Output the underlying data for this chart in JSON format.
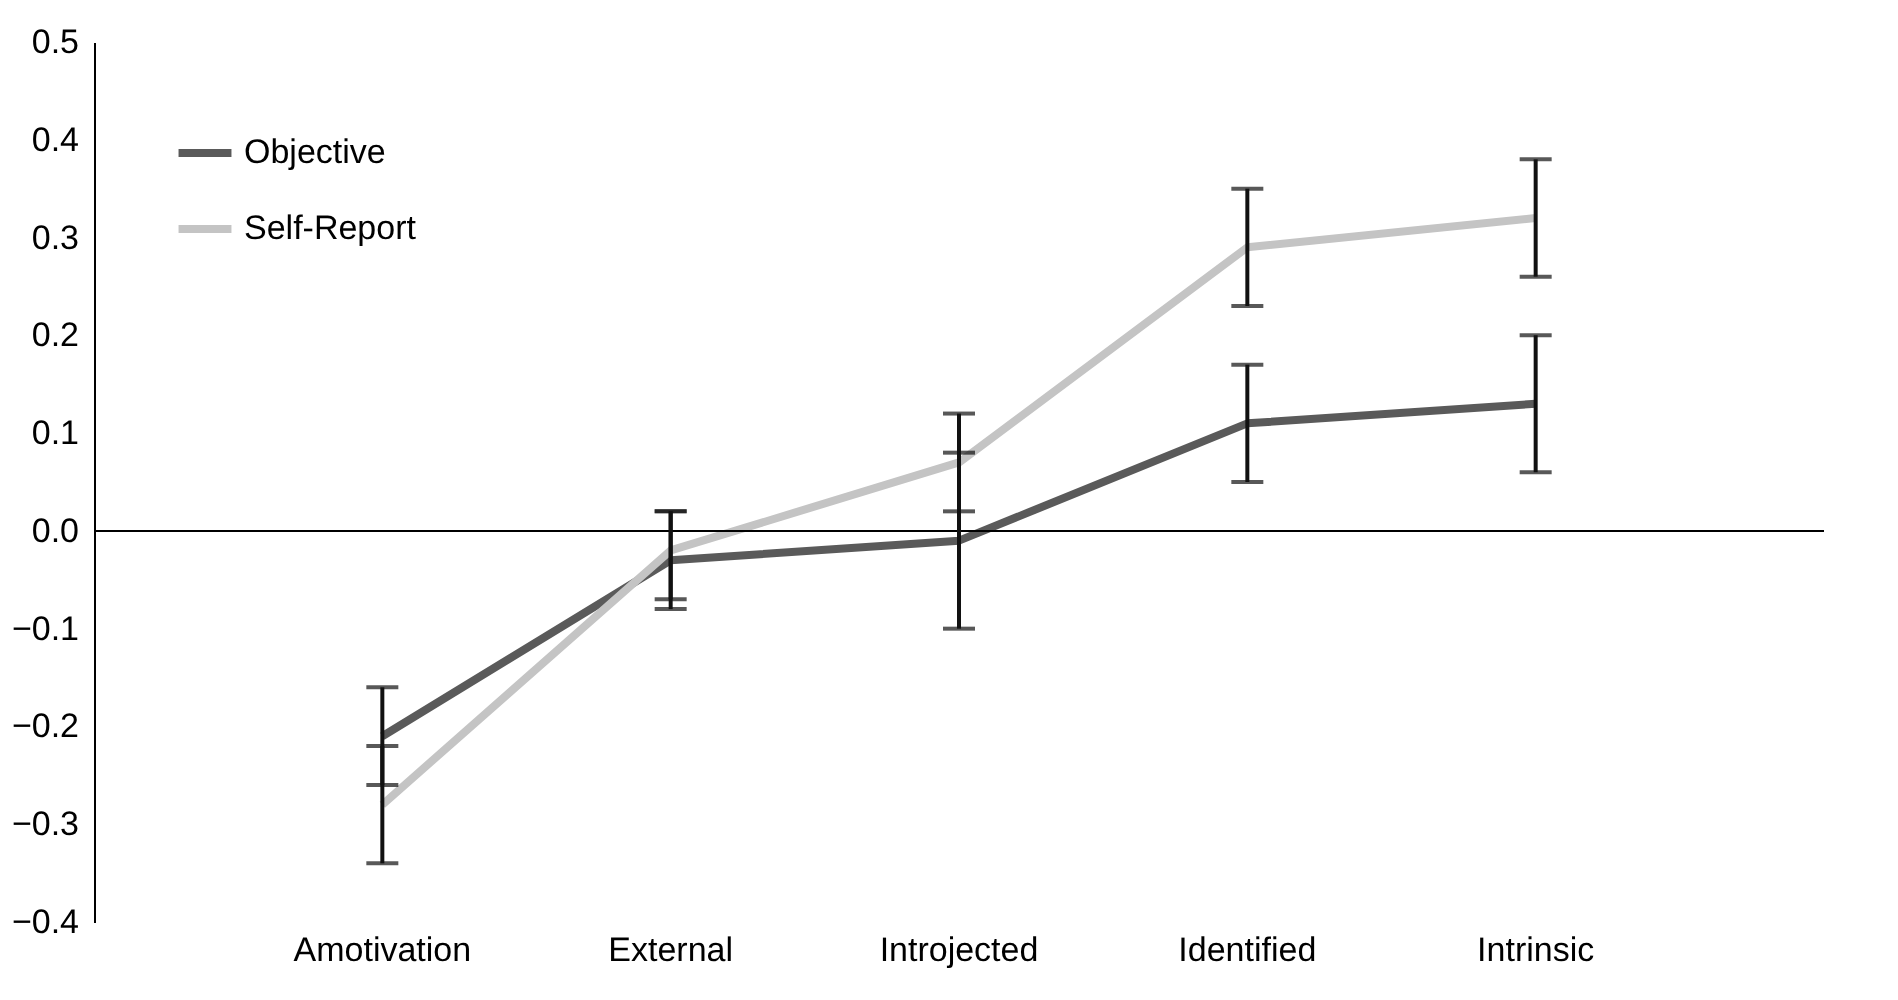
{
  "chart_data": {
    "type": "line",
    "categories": [
      "Amotivation",
      "External",
      "Introjected",
      "Identified",
      "Intrinsic"
    ],
    "series": [
      {
        "name": "Objective",
        "color": "#5a5a5a",
        "values": [
          -0.21,
          -0.03,
          -0.01,
          0.11,
          0.13
        ],
        "errors": [
          [
            -0.26,
            -0.16
          ],
          [
            -0.08,
            0.02
          ],
          [
            -0.1,
            0.08
          ],
          [
            0.05,
            0.17
          ],
          [
            0.06,
            0.2
          ]
        ]
      },
      {
        "name": "Self-Report",
        "color": "#c4c4c4",
        "values": [
          -0.28,
          -0.02,
          0.07,
          0.29,
          0.32
        ],
        "errors": [
          [
            -0.34,
            -0.22
          ],
          [
            -0.07,
            0.02
          ],
          [
            0.02,
            0.12
          ],
          [
            0.23,
            0.35
          ],
          [
            0.26,
            0.38
          ]
        ]
      }
    ],
    "ylim": [
      -0.4,
      0.5
    ],
    "yticks": [
      {
        "value": -0.4,
        "label": "−0.4"
      },
      {
        "value": -0.3,
        "label": "−0.3"
      },
      {
        "value": -0.2,
        "label": "−0.2"
      },
      {
        "value": -0.1,
        "label": "−0.1"
      },
      {
        "value": 0,
        "label": "0.0"
      },
      {
        "value": 0.1,
        "label": "0.1"
      },
      {
        "value": 0.2,
        "label": "0.2"
      },
      {
        "value": 0.3,
        "label": "0.3"
      },
      {
        "value": 0.4,
        "label": "0.4"
      },
      {
        "value": 0.5,
        "label": "0.5"
      }
    ],
    "ref_lines": [
      {
        "axis": "y",
        "value": 0,
        "color": "#000000"
      }
    ],
    "legend": "top left",
    "grid": false,
    "marker": "none",
    "line_style": "solid"
  }
}
